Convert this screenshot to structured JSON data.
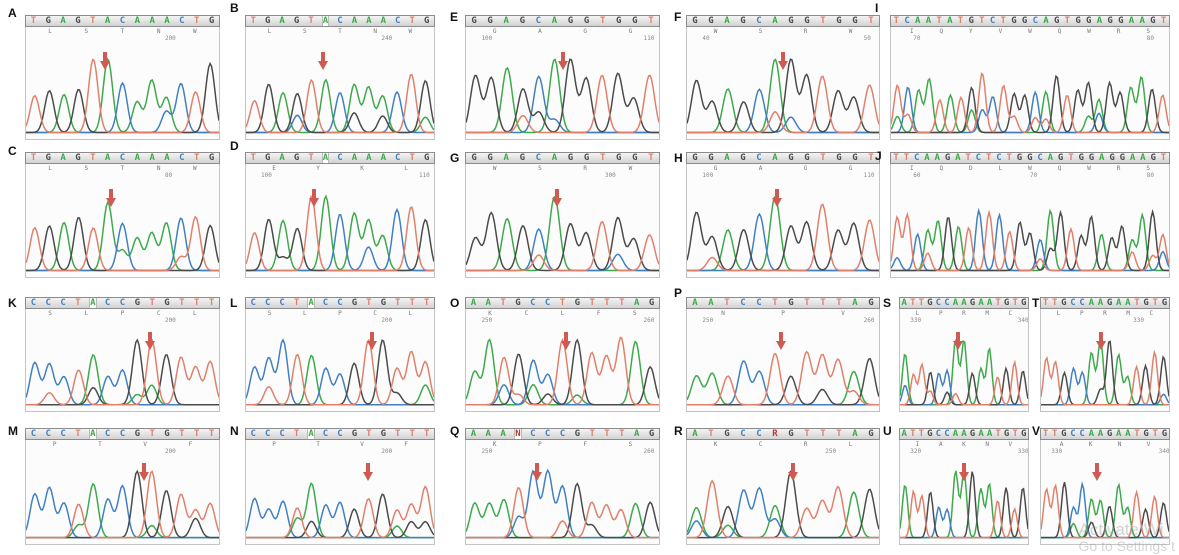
{
  "colors": {
    "A": "#3ca94a",
    "C": "#3f7fc2",
    "G": "#4a4a4a",
    "T": "#e0806a",
    "arrow": "#cf5a52"
  },
  "panels": [
    {
      "label": "A",
      "seq": "TGAGTACAAACTG",
      "aa": [
        "L",
        "S",
        "T",
        "N",
        "W"
      ],
      "pos": [
        "200"
      ],
      "arrow": 0.41,
      "hl": -1
    },
    {
      "label": "B",
      "seq": "TGAGTACAAACTG",
      "aa": [
        "L",
        "S",
        "T",
        "N",
        "W"
      ],
      "pos": [
        "240"
      ],
      "arrow": 0.41,
      "hl": 5
    },
    {
      "label": "E",
      "seq": "GGAGCAGGTGGT",
      "aa": [
        "G",
        "A",
        "G",
        "G"
      ],
      "pos": [
        "100",
        "110"
      ],
      "arrow": 0.5,
      "hl": -1
    },
    {
      "label": "F",
      "seq": "GGAGCAGGTGGT",
      "aa": [
        "W",
        "S",
        "R",
        "W"
      ],
      "pos": [
        "40",
        "50"
      ],
      "arrow": 0.5,
      "hl": -1
    },
    {
      "label": "I",
      "seq": "TCAATATGTCTGGCAGTGGAGGAAGT",
      "aa": [
        "I",
        "Q",
        "Y",
        "V",
        "W",
        "Q",
        "W",
        "R",
        "S"
      ],
      "pos": [
        "70",
        "80"
      ],
      "arrow": -1,
      "hl": -1
    },
    {
      "label": "C",
      "seq": "TGAGTACAAACTG",
      "aa": [
        "L",
        "S",
        "T",
        "N",
        "W"
      ],
      "pos": [
        "80"
      ],
      "arrow": 0.44,
      "hl": -1
    },
    {
      "label": "D",
      "seq": "TGAGTACAAACTG",
      "aa": [
        "E",
        "Y",
        "K",
        "L"
      ],
      "pos": [
        "100",
        "110"
      ],
      "arrow": 0.36,
      "hl": 5
    },
    {
      "label": "G",
      "seq": "GGAGCAGGTGGT",
      "aa": [
        "W",
        "S",
        "R",
        "W"
      ],
      "pos": [
        "300"
      ],
      "arrow": 0.47,
      "hl": -1
    },
    {
      "label": "H",
      "seq": "GGAGCAGGTGGT",
      "aa": [
        "G",
        "A",
        "G",
        "G"
      ],
      "pos": [
        "100",
        "110"
      ],
      "arrow": 0.47,
      "hl": -1
    },
    {
      "label": "J",
      "seq": "TTCAAGATCTCTGGCAGTGGAGGAAGT",
      "aa": [
        "I",
        "Q",
        "D",
        "L",
        "W",
        "Q",
        "W",
        "R",
        "S"
      ],
      "pos": [
        "60",
        "70",
        "80"
      ],
      "arrow": -1,
      "hl": -1
    },
    {
      "label": "K",
      "seq": "CCCTACCGTGTTT",
      "aa": [
        "S",
        "L",
        "P",
        "C",
        "L"
      ],
      "pos": [
        "200"
      ],
      "arrow": 0.64,
      "hl": 4
    },
    {
      "label": "L",
      "seq": "CCCTACCGTGTTT",
      "aa": [
        "S",
        "L",
        "P",
        "C",
        "L"
      ],
      "pos": [
        "200"
      ],
      "arrow": 0.67,
      "hl": 4
    },
    {
      "label": "O",
      "seq": "AATGCCTGTTTAG",
      "aa": [
        "K",
        "C",
        "L",
        "F",
        "S"
      ],
      "pos": [
        "250",
        "260"
      ],
      "arrow": 0.52,
      "hl": -1
    },
    {
      "label": "P",
      "seq": "AATCCTGTTTAG",
      "aa": [
        "N",
        "P",
        "V"
      ],
      "pos": [
        "250",
        "260"
      ],
      "arrow": 0.49,
      "hl": -1
    },
    {
      "label": "S",
      "seq": "ATTGCCAAGAATGTG",
      "aa": [
        "L",
        "P",
        "R",
        "M",
        "C"
      ],
      "pos": [
        "330",
        "340"
      ],
      "arrow": 0.45,
      "hl": -1
    },
    {
      "label": "T",
      "seq": "TTGCCAAGAATGTG",
      "aa": [
        "L",
        "P",
        "R",
        "M",
        "C"
      ],
      "pos": [
        "330"
      ],
      "arrow": 0.47,
      "hl": -1
    },
    {
      "label": "M",
      "seq": "CCCTACCGTGTTT",
      "aa": [
        "P",
        "T",
        "V",
        "F"
      ],
      "pos": [
        "200"
      ],
      "arrow": 0.61,
      "hl": 4
    },
    {
      "label": "N",
      "seq": "CCCTACCGTGTTT",
      "aa": [
        "P",
        "T",
        "V",
        "F"
      ],
      "pos": [
        "200"
      ],
      "arrow": 0.65,
      "hl": 4
    },
    {
      "label": "Q",
      "seq": "AAANCCCGTTTAG",
      "aa": [
        "K",
        "P",
        "F",
        "S"
      ],
      "pos": [
        "250",
        "260"
      ],
      "arrow": 0.37,
      "hl": 3
    },
    {
      "label": "R",
      "seq": "ATGCCRGTTTAG",
      "aa": [
        "K",
        "C",
        "R",
        "L"
      ],
      "pos": [
        "250"
      ],
      "arrow": 0.55,
      "hl": -1
    },
    {
      "label": "U",
      "seq": "ATTGCCAAGAATGTG",
      "aa": [
        "I",
        "A",
        "K",
        "N",
        "V"
      ],
      "pos": [
        "320",
        "330"
      ],
      "arrow": 0.5,
      "hl": -1
    },
    {
      "label": "V",
      "seq": "TTGCCAAGAATGTG",
      "aa": [
        "A",
        "K",
        "N",
        "V"
      ],
      "pos": [
        "330",
        "340"
      ],
      "arrow": 0.44,
      "hl": -1
    }
  ],
  "watermark": {
    "line1": "Activate Wi",
    "line2": "Go to Settings t"
  }
}
